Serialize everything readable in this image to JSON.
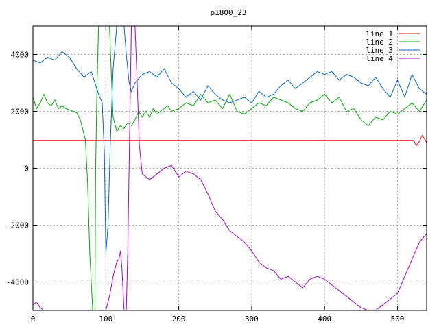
{
  "chart_data": {
    "type": "line",
    "title": "p1800_23",
    "xlabel": "",
    "ylabel": "",
    "xlim": [
      0,
      540
    ],
    "ylim": [
      -5000,
      5000
    ],
    "x_ticks": [
      0,
      100,
      200,
      300,
      400,
      500
    ],
    "y_ticks": [
      -4000,
      -2000,
      0,
      2000,
      4000
    ],
    "grid": true,
    "legend_position": "top-right",
    "series": [
      {
        "name": "line 1",
        "color": "#ff0000",
        "x": [
          0,
          100,
          200,
          300,
          400,
          500,
          522,
          526,
          530,
          534,
          538,
          540
        ],
        "y": [
          980,
          980,
          980,
          980,
          980,
          980,
          980,
          800,
          950,
          1150,
          1000,
          900
        ]
      },
      {
        "name": "line 2",
        "color": "#00aa00",
        "x": [
          0,
          5,
          10,
          15,
          20,
          25,
          30,
          35,
          40,
          45,
          50,
          55,
          60,
          65,
          68,
          72,
          75,
          78,
          82,
          85,
          86,
          88,
          90,
          92,
          95,
          100,
          105,
          108,
          110,
          115,
          120,
          125,
          130,
          135,
          140,
          145,
          150,
          155,
          160,
          165,
          170,
          175,
          180,
          185,
          190,
          200,
          210,
          220,
          230,
          240,
          250,
          260,
          270,
          280,
          290,
          300,
          310,
          320,
          330,
          340,
          350,
          360,
          370,
          380,
          390,
          400,
          410,
          420,
          430,
          440,
          450,
          460,
          470,
          480,
          490,
          500,
          510,
          520,
          530,
          540
        ],
        "y": [
          2500,
          2100,
          2300,
          2600,
          2300,
          2200,
          2400,
          2100,
          2200,
          2100,
          2050,
          2000,
          1950,
          1700,
          1400,
          1000,
          -500,
          -3000,
          -5000,
          -5000,
          0,
          3000,
          5000,
          5000,
          5000,
          5000,
          5000,
          3000,
          1800,
          1300,
          1500,
          1400,
          1600,
          1500,
          1700,
          2000,
          1800,
          2000,
          1800,
          2100,
          1900,
          2000,
          2100,
          2200,
          2000,
          2100,
          2300,
          2200,
          2600,
          2300,
          2400,
          2100,
          2600,
          2000,
          1900,
          2100,
          2300,
          2200,
          2500,
          2400,
          2300,
          2100,
          2000,
          2300,
          2400,
          2600,
          2300,
          2500,
          2000,
          2100,
          1700,
          1500,
          1800,
          1700,
          2000,
          1900,
          2100,
          2300,
          2000,
          2400
        ]
      },
      {
        "name": "line 3",
        "color": "#0066cc",
        "x": [
          0,
          10,
          20,
          30,
          40,
          50,
          60,
          70,
          80,
          85,
          90,
          95,
          98,
          100,
          103,
          106,
          110,
          115,
          120,
          125,
          128,
          132,
          135,
          140,
          150,
          160,
          170,
          180,
          190,
          200,
          210,
          220,
          230,
          240,
          250,
          260,
          270,
          280,
          290,
          300,
          310,
          320,
          330,
          340,
          350,
          360,
          370,
          380,
          390,
          400,
          410,
          420,
          430,
          440,
          450,
          460,
          470,
          480,
          490,
          500,
          510,
          520,
          530,
          540
        ],
        "y": [
          3800,
          3700,
          3900,
          3800,
          4100,
          3900,
          3500,
          3200,
          3400,
          3000,
          2600,
          2300,
          500,
          -3000,
          -2000,
          800,
          3500,
          5000,
          5000,
          5000,
          4000,
          3000,
          2700,
          3000,
          3300,
          3400,
          3200,
          3500,
          3000,
          2800,
          2500,
          2700,
          2400,
          2900,
          2600,
          2400,
          2300,
          2400,
          2500,
          2300,
          2700,
          2500,
          2600,
          2900,
          3100,
          2800,
          3000,
          3200,
          3400,
          3300,
          3400,
          3100,
          3300,
          3200,
          3000,
          2900,
          3200,
          2800,
          2500,
          3100,
          2500,
          3300,
          2800,
          2600
        ]
      },
      {
        "name": "line 4",
        "color": "#aa00cc",
        "x": [
          0,
          5,
          10,
          15,
          20,
          25,
          30,
          35,
          40,
          45,
          50,
          55,
          60,
          65,
          70,
          80,
          90,
          100,
          105,
          110,
          115,
          118,
          120,
          122,
          125,
          128,
          130,
          135,
          138,
          140,
          143,
          146,
          150,
          155,
          160,
          170,
          180,
          190,
          200,
          210,
          220,
          230,
          240,
          250,
          260,
          270,
          280,
          290,
          300,
          310,
          320,
          330,
          340,
          350,
          360,
          370,
          380,
          390,
          400,
          410,
          420,
          430,
          440,
          450,
          460,
          470,
          480,
          490,
          500,
          510,
          520,
          530,
          540
        ],
        "y": [
          -4800,
          -4700,
          -4900,
          -5000,
          -5000,
          -5000,
          -5000,
          -5000,
          -5000,
          -5000,
          -5000,
          -5000,
          -5000,
          -5000,
          -5000,
          -5000,
          -5000,
          -5000,
          -4500,
          -3800,
          -3300,
          -3200,
          -2900,
          -3500,
          -5000,
          -5000,
          -3000,
          5000,
          5000,
          5000,
          3000,
          800,
          -200,
          -300,
          -400,
          -200,
          0,
          100,
          -300,
          -100,
          -200,
          -400,
          -900,
          -1500,
          -1800,
          -2200,
          -2400,
          -2600,
          -2900,
          -3300,
          -3500,
          -3600,
          -3900,
          -3800,
          -4000,
          -4200,
          -3900,
          -3800,
          -3900,
          -4100,
          -4300,
          -4500,
          -4700,
          -4900,
          -5000,
          -5000,
          -4800,
          -4600,
          -4400,
          -3800,
          -3200,
          -2600,
          -2300
        ]
      }
    ]
  }
}
